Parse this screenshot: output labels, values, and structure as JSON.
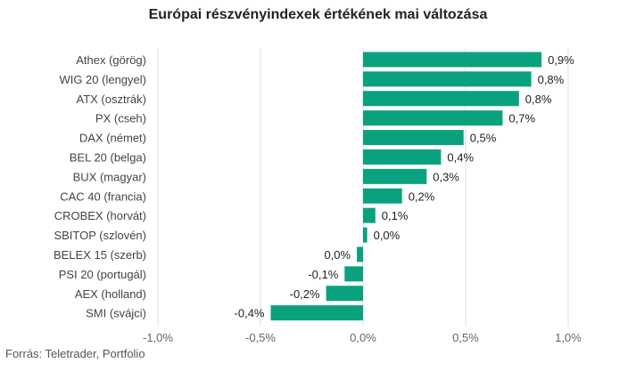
{
  "chart_data": {
    "type": "bar",
    "orientation": "horizontal",
    "title": "Európai részvényindexek értékének mai változása",
    "categories": [
      "Athex (görög)",
      "WIG 20 (lengyel)",
      "ATX (osztrák)",
      "PX (cseh)",
      "DAX (német)",
      "BEL 20 (belga)",
      "BUX (magyar)",
      "CAC 40 (francia)",
      "CROBEX (horvát)",
      "SBITOP (szlovén)",
      "BELEX 15 (szerb)",
      "PSI 20 (portugál)",
      "AEX (holland)",
      "SMI (svájci)"
    ],
    "values": [
      0.87,
      0.82,
      0.76,
      0.68,
      0.49,
      0.38,
      0.31,
      0.19,
      0.06,
      0.02,
      -0.03,
      -0.09,
      -0.18,
      -0.45
    ],
    "value_labels": [
      "0,9%",
      "0,8%",
      "0,8%",
      "0,7%",
      "0,5%",
      "0,4%",
      "0,3%",
      "0,2%",
      "0,1%",
      "0,0%",
      "0,0%",
      "-0,1%",
      "-0,2%",
      "-0,4%"
    ],
    "xlim": [
      -1.0,
      1.0
    ],
    "xticks": [
      -1.0,
      -0.5,
      0.0,
      0.5,
      1.0
    ],
    "xtick_labels": [
      "-1,0%",
      "-0,5%",
      "0,0%",
      "0,5%",
      "1,0%"
    ],
    "xlabel": "",
    "ylabel": "",
    "grid": "vertical",
    "bar_color": "#0aa17e"
  },
  "source_text": "Forrás: Teletrader, Portfolio"
}
